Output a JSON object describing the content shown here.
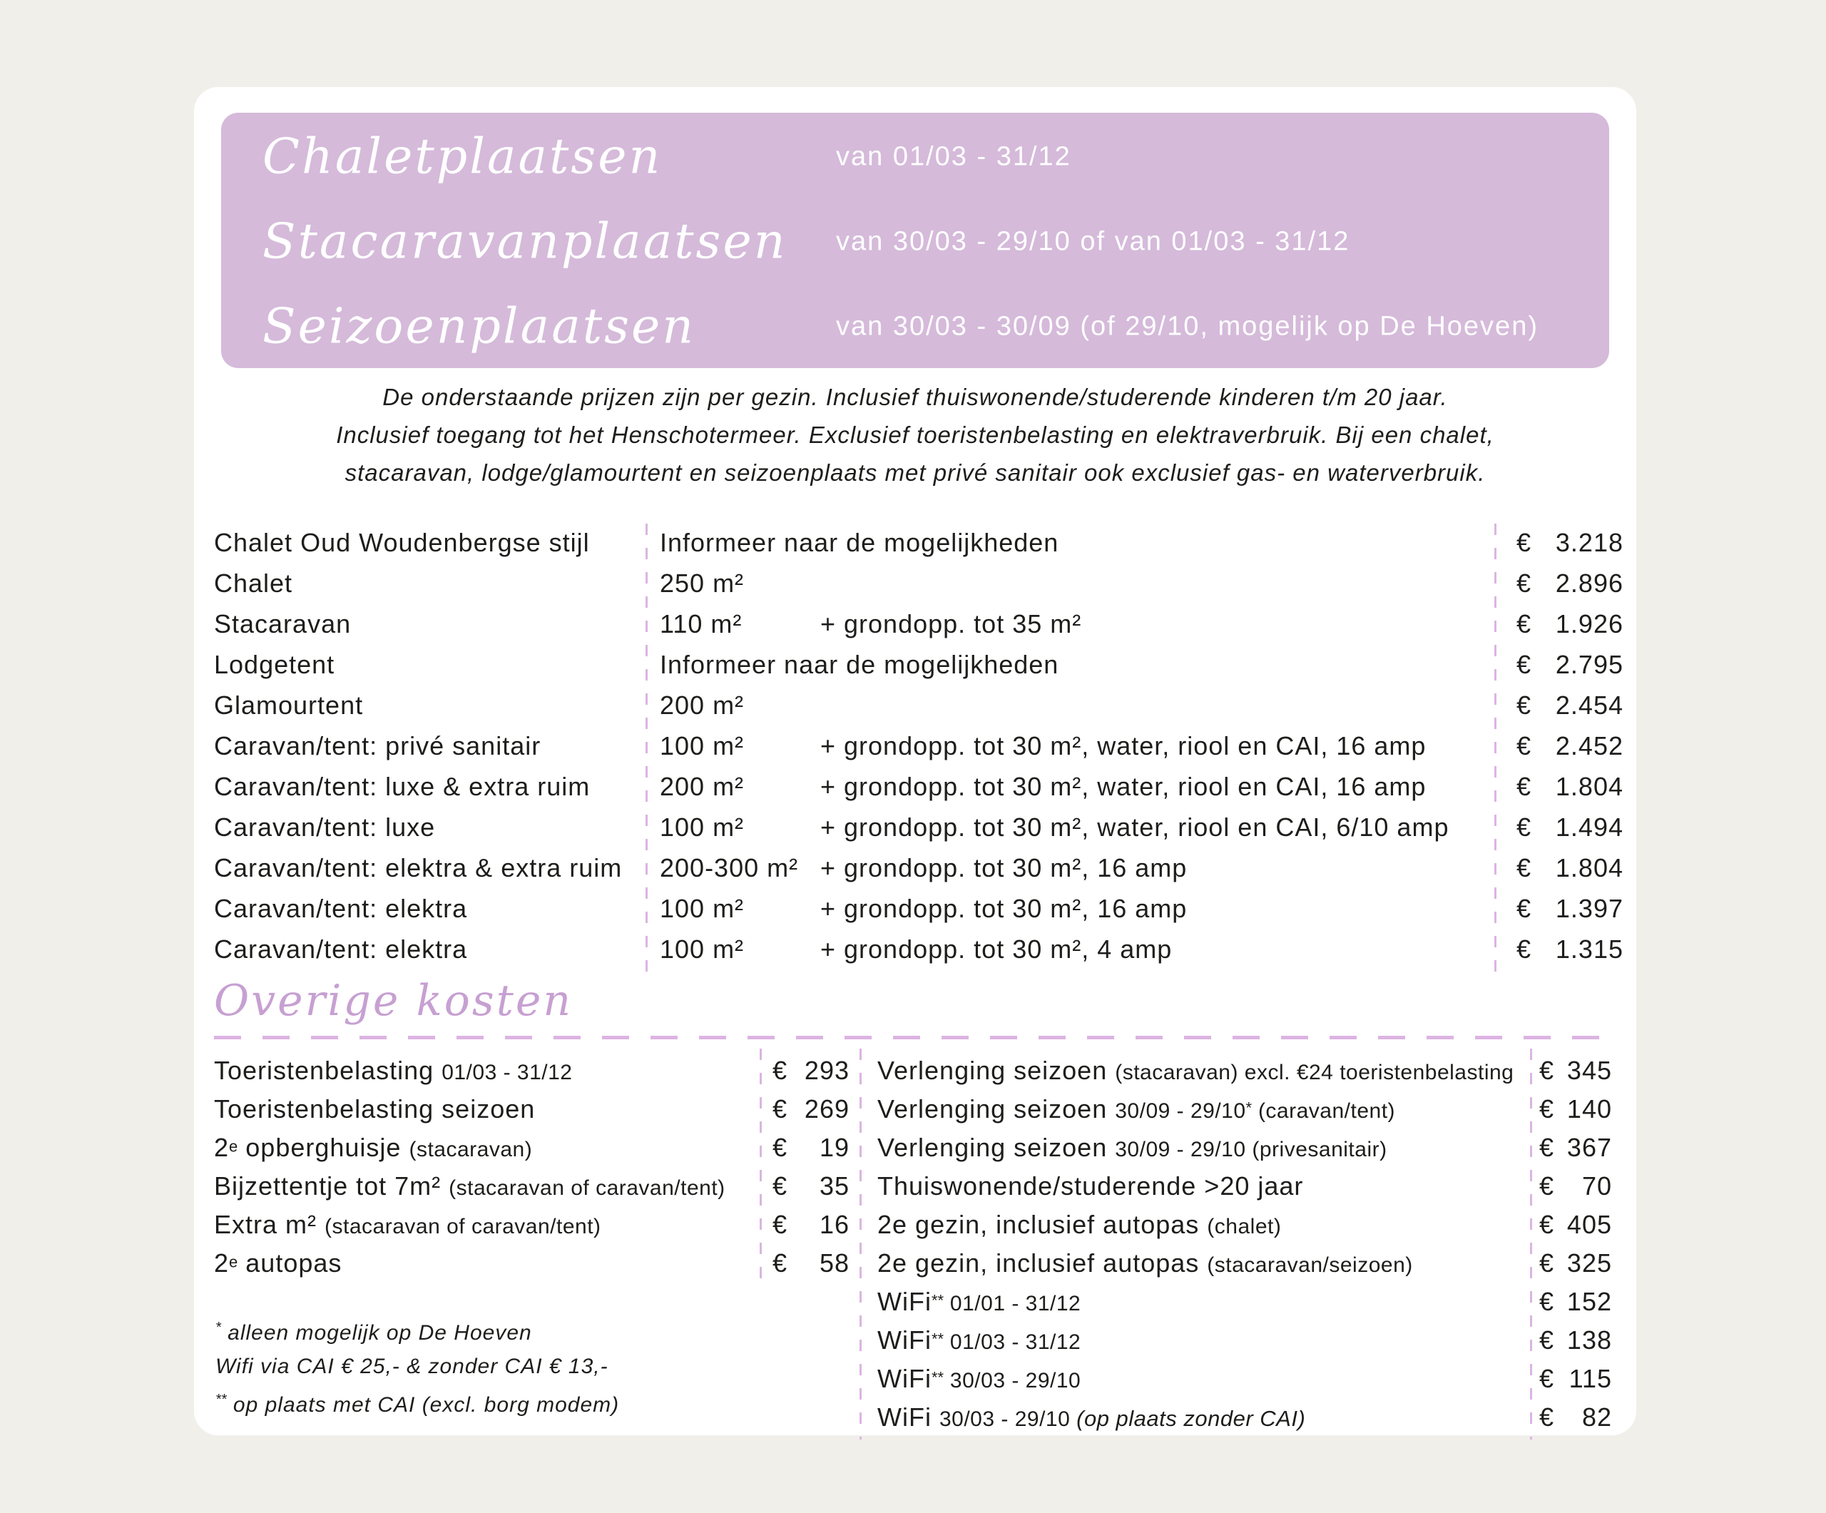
{
  "colors": {
    "page_background": "#f1efea",
    "card_background": "#ffffff",
    "header_block": "#d5bada",
    "script_accent": "#c7a0d2",
    "dash_lines": "#dcb4e2",
    "text": "#1d1d1b"
  },
  "currency": "€",
  "header": {
    "rows": [
      {
        "title": "Chaletplaatsen",
        "period": "van 01/03 - 31/12"
      },
      {
        "title": "Stacaravanplaatsen",
        "period": "van 30/03 - 29/10 of van 01/03 - 31/12"
      },
      {
        "title": "Seizoenplaatsen",
        "period": "van 30/03 - 30/09 (of 29/10, mogelijk op De Hoeven)"
      }
    ]
  },
  "intro": {
    "lines": [
      "De onderstaande prijzen zijn per gezin. Inclusief thuiswonende/studerende kinderen t/m 20 jaar.",
      "Inclusief toegang tot het Henschotermeer. Exclusief toeristenbelasting en elektraverbruik. Bij een chalet,",
      "stacaravan, lodge/glamourtent en seizoenplaats met privé sanitair ook exclusief gas- en waterverbruik."
    ]
  },
  "main_table": {
    "rows": [
      {
        "name": "Chalet Oud Woudenbergse stijl",
        "size": "Informeer naar de mogelijkheden",
        "details": "",
        "price": "3.218"
      },
      {
        "name": "Chalet",
        "size": "250 m²",
        "details": "",
        "price": "2.896"
      },
      {
        "name": "Stacaravan",
        "size": "110 m²",
        "details": "+ grondopp. tot 35 m²",
        "price": "1.926"
      },
      {
        "name": "Lodgetent",
        "size": "Informeer naar de mogelijkheden",
        "details": "",
        "price": "2.795"
      },
      {
        "name": "Glamourtent",
        "size": "200 m²",
        "details": "",
        "price": "2.454"
      },
      {
        "name": "Caravan/tent: privé sanitair",
        "size": "100 m²",
        "details": "+ grondopp. tot 30 m², water, riool en CAI, 16 amp",
        "price": "2.452"
      },
      {
        "name": "Caravan/tent: luxe & extra ruim",
        "size": "200 m²",
        "details": "+ grondopp. tot 30 m², water, riool en CAI, 16 amp",
        "price": "1.804"
      },
      {
        "name": "Caravan/tent: luxe",
        "size": "100 m²",
        "details": "+ grondopp. tot 30 m², water, riool en CAI, 6/10 amp",
        "price": "1.494"
      },
      {
        "name": "Caravan/tent: elektra & extra ruim",
        "size": "200-300 m²",
        "details": "+ grondopp. tot 30 m², 16 amp",
        "price": "1.804"
      },
      {
        "name": "Caravan/tent: elektra",
        "size": "100 m²",
        "details": "+ grondopp. tot 30 m², 16 amp",
        "price": "1.397"
      },
      {
        "name": "Caravan/tent: elektra",
        "size": "100 m²",
        "details": "+ grondopp. tot 30 m², 4 amp",
        "price": "1.315"
      }
    ]
  },
  "overige": {
    "title": "Overige kosten",
    "left": {
      "rows": [
        {
          "parts": [
            {
              "t": "Toeristenbelasting ",
              "s": "m"
            },
            {
              "t": "01/03 - 31/12",
              "s": "s"
            }
          ],
          "price": "293"
        },
        {
          "parts": [
            {
              "t": "Toeristenbelasting seizoen",
              "s": "m"
            }
          ],
          "price": "269"
        },
        {
          "parts": [
            {
              "t": "2",
              "s": "m"
            },
            {
              "t": "e",
              "s": "p"
            },
            {
              "t": " opberghuisje ",
              "s": "m"
            },
            {
              "t": "(stacaravan)",
              "s": "s"
            }
          ],
          "price": "19"
        },
        {
          "parts": [
            {
              "t": "Bijzettentje tot 7m² ",
              "s": "m"
            },
            {
              "t": "(stacaravan of caravan/tent)",
              "s": "s"
            }
          ],
          "price": "35"
        },
        {
          "parts": [
            {
              "t": "Extra m² ",
              "s": "m"
            },
            {
              "t": "(stacaravan of caravan/tent)",
              "s": "s"
            }
          ],
          "price": "16"
        },
        {
          "parts": [
            {
              "t": "2",
              "s": "m"
            },
            {
              "t": "e",
              "s": "p"
            },
            {
              "t": " autopas",
              "s": "m"
            }
          ],
          "price": "58"
        }
      ]
    },
    "right": {
      "rows": [
        {
          "parts": [
            {
              "t": "Verlenging seizoen ",
              "s": "m"
            },
            {
              "t": "(stacaravan) excl. €24 toeristenbelasting",
              "s": "s"
            }
          ],
          "price": "345"
        },
        {
          "parts": [
            {
              "t": "Verlenging seizoen ",
              "s": "m"
            },
            {
              "t": "30/09 - 29/10",
              "s": "s"
            },
            {
              "t": "*",
              "s": "p"
            },
            {
              "t": " (caravan/tent)",
              "s": "s"
            }
          ],
          "price": "140"
        },
        {
          "parts": [
            {
              "t": "Verlenging seizoen ",
              "s": "m"
            },
            {
              "t": "30/09 - 29/10 (privesanitair)",
              "s": "s"
            }
          ],
          "price": "367"
        },
        {
          "parts": [
            {
              "t": "Thuiswonende/studerende >20 jaar",
              "s": "m"
            }
          ],
          "price": "70"
        },
        {
          "parts": [
            {
              "t": "2e gezin, inclusief autopas ",
              "s": "m"
            },
            {
              "t": "(chalet)",
              "s": "s"
            }
          ],
          "price": "405"
        },
        {
          "parts": [
            {
              "t": "2e gezin, inclusief autopas ",
              "s": "m"
            },
            {
              "t": "(stacaravan/seizoen)",
              "s": "s"
            }
          ],
          "price": "325"
        },
        {
          "parts": [
            {
              "t": "WiFi",
              "s": "m"
            },
            {
              "t": "**",
              "s": "p"
            },
            {
              "t": " 01/01  - 31/12",
              "s": "s"
            }
          ],
          "price": "152"
        },
        {
          "parts": [
            {
              "t": "WiFi",
              "s": "m"
            },
            {
              "t": "**",
              "s": "p"
            },
            {
              "t": " 01/03  - 31/12",
              "s": "s"
            }
          ],
          "price": "138"
        },
        {
          "parts": [
            {
              "t": "WiFi",
              "s": "m"
            },
            {
              "t": "**",
              "s": "p"
            },
            {
              "t": " 30/03 - 29/10",
              "s": "s"
            }
          ],
          "price": "115"
        },
        {
          "parts": [
            {
              "t": "WiFi ",
              "s": "m"
            },
            {
              "t": "30/03 - 29/10 ",
              "s": "s"
            },
            {
              "t": "(op plaats zonder CAI)",
              "s": "i"
            }
          ],
          "price": "82"
        }
      ]
    },
    "footnotes": [
      {
        "parts": [
          {
            "t": "*",
            "s": "p"
          },
          {
            "t": " alleen mogelijk op De Hoeven",
            "s": "m"
          }
        ]
      },
      {
        "parts": [
          {
            "t": "Wifi via CAI € 25,- & zonder CAI € 13,-",
            "s": "m"
          }
        ]
      },
      {
        "parts": [
          {
            "t": "**",
            "s": "p"
          },
          {
            "t": " op plaats met CAI (excl. borg modem)",
            "s": "m"
          }
        ]
      }
    ]
  }
}
